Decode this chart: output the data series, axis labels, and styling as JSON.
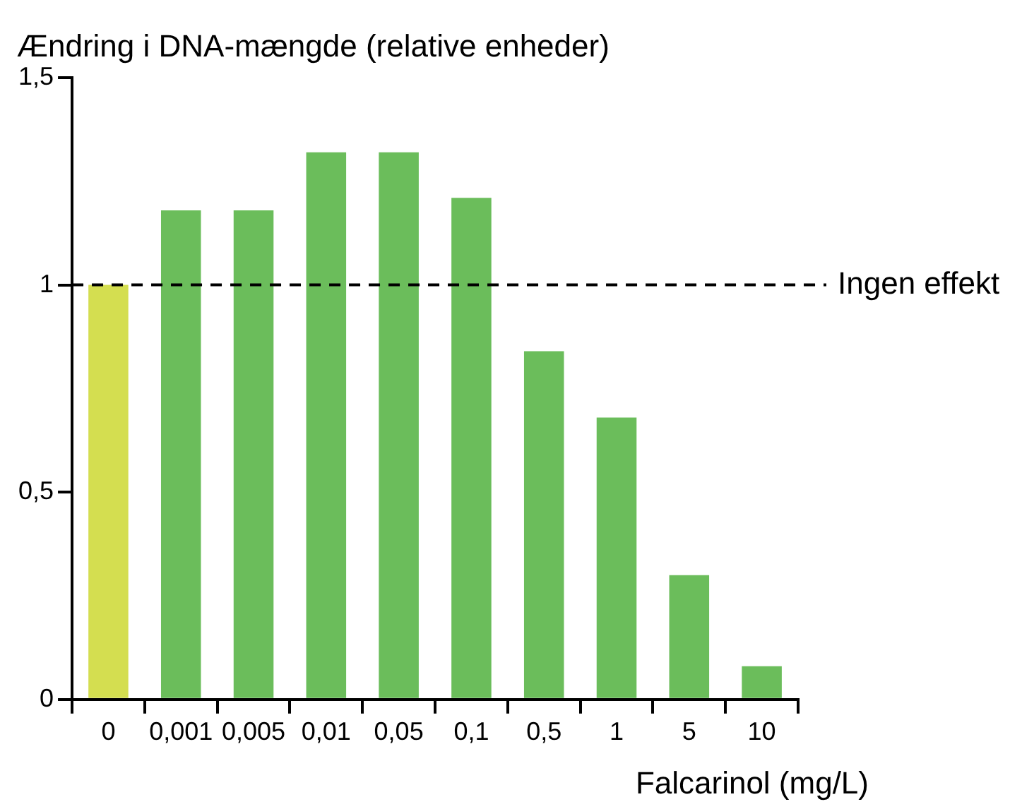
{
  "chart_data": {
    "type": "bar",
    "ylabel": "Ændring i DNA-mængde (relative enheder)",
    "xlabel": "Falcarinol (mg/L)",
    "categories": [
      "0",
      "0,001",
      "0,005",
      "0,01",
      "0,05",
      "0,1",
      "0,5",
      "1",
      "5",
      "10"
    ],
    "values": [
      1,
      1.18,
      1.18,
      1.32,
      1.32,
      1.21,
      0.84,
      0.68,
      0.3,
      0.08
    ],
    "colors": [
      "#d4de50",
      "#6bbd5b",
      "#6bbd5b",
      "#6bbd5b",
      "#6bbd5b",
      "#6bbd5b",
      "#6bbd5b",
      "#6bbd5b",
      "#6bbd5b",
      "#6bbd5b"
    ],
    "ylim": [
      0,
      1.5
    ],
    "yticks": [
      0,
      {
        "value": 0.5,
        "label": "0,5"
      },
      1,
      {
        "value": 1.5,
        "label": "1,5"
      }
    ],
    "ref_lines": [
      {
        "axis": "y",
        "value": 1,
        "label": "Ingen effekt",
        "color": "#000000",
        "line_style": "dashed"
      }
    ],
    "grid": false,
    "legend": false
  }
}
